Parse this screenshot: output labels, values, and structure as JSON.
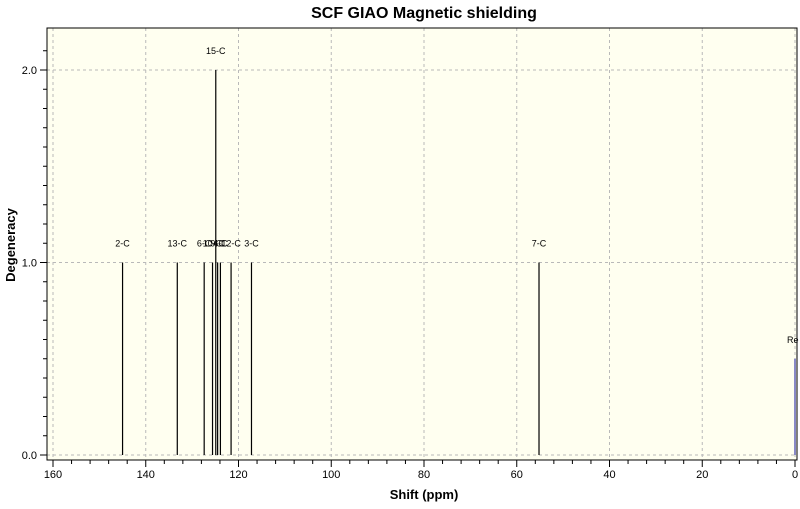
{
  "chart_data": {
    "type": "bar",
    "title": "SCF GIAO Magnetic shielding",
    "xlabel": "Shift (ppm)",
    "ylabel": "Degeneracy",
    "xlim": [
      160,
      0
    ],
    "ylim": [
      0,
      2.2
    ],
    "x_ticks": [
      160,
      140,
      120,
      100,
      80,
      60,
      40,
      20,
      0
    ],
    "y_ticks": [
      0.0,
      1.0,
      2.0
    ],
    "y_tick_labels": [
      "0.0",
      "1.0",
      "2.0"
    ],
    "grid": true,
    "plot_background": "#fffff0",
    "peak_color": "#000000",
    "reference_color": "#3a3aaa",
    "peaks": [
      {
        "label": "2-C",
        "x": 145.0,
        "y": 1.0
      },
      {
        "label": "13-C",
        "x": 133.2,
        "y": 1.0
      },
      {
        "label": "6-C",
        "x": 127.4,
        "y": 1.0
      },
      {
        "label": "10-C",
        "x": 125.6,
        "y": 1.0
      },
      {
        "label": "15-C",
        "x": 124.9,
        "y": 2.0
      },
      {
        "label": "9-C",
        "x": 124.5,
        "y": 1.0
      },
      {
        "label": "4-C",
        "x": 123.9,
        "y": 1.0
      },
      {
        "label": "12-C",
        "x": 121.6,
        "y": 1.0
      },
      {
        "label": "3-C",
        "x": 117.2,
        "y": 1.0
      },
      {
        "label": "7-C",
        "x": 55.2,
        "y": 1.0
      },
      {
        "label": "Re",
        "x": 0.0,
        "y": 0.5,
        "reference": true
      }
    ]
  }
}
